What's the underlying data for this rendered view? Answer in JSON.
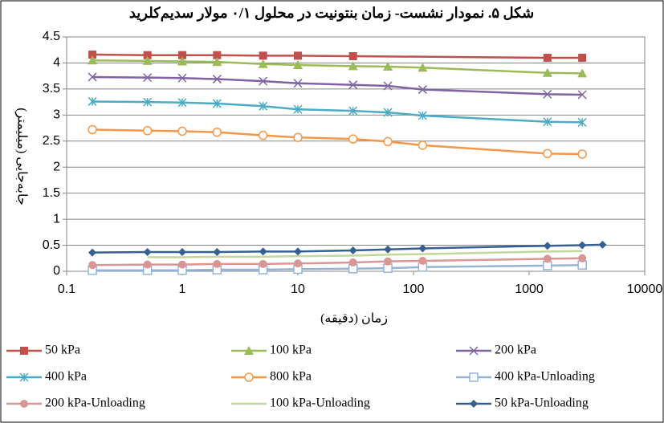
{
  "chart_data": {
    "type": "line",
    "title": "شکل ۵. نمودار نشست- زمان بنتونیت در محلول ۰/۱ مولار سدیم‌کلرید",
    "x_label": "زمان (دقیقه)",
    "y_label": "جابه‌جایی (میلیمتر)",
    "xlim": [
      0.1,
      10000
    ],
    "xticks": [
      0.1,
      1,
      10,
      100,
      1000,
      10000
    ],
    "x_log": true,
    "ylim": [
      0,
      4.5
    ],
    "yticks": [
      0,
      0.5,
      1,
      1.5,
      2,
      2.5,
      3,
      3.5,
      4,
      4.5
    ],
    "grid": true,
    "legend": "bottom",
    "series": [
      {
        "name": "50 kPa",
        "color": "#c0504d",
        "marker": "square",
        "x": [
          0.167,
          0.5,
          1,
          2,
          5,
          10,
          30,
          1440,
          2880
        ],
        "values": [
          4.16,
          4.15,
          4.15,
          4.15,
          4.14,
          4.14,
          4.13,
          4.1,
          4.1
        ]
      },
      {
        "name": "100 kPa",
        "color": "#9bbb59",
        "marker": "triangle",
        "x": [
          0.167,
          0.5,
          1,
          2,
          5,
          10,
          30,
          60,
          120,
          1440,
          2880
        ],
        "values": [
          4.05,
          4.04,
          4.03,
          4.02,
          3.98,
          3.96,
          3.94,
          3.93,
          3.91,
          3.81,
          3.8
        ]
      },
      {
        "name": "200 kPa",
        "color": "#8064a2",
        "marker": "x",
        "x": [
          0.167,
          0.5,
          1,
          2,
          5,
          10,
          30,
          60,
          120,
          1440,
          2880
        ],
        "values": [
          3.73,
          3.72,
          3.71,
          3.69,
          3.65,
          3.61,
          3.58,
          3.56,
          3.49,
          3.4,
          3.39
        ]
      },
      {
        "name": "400 kPa",
        "color": "#4bacc6",
        "marker": "star",
        "x": [
          0.167,
          0.5,
          1,
          2,
          5,
          10,
          30,
          60,
          120,
          1440,
          2880
        ],
        "values": [
          3.26,
          3.25,
          3.24,
          3.22,
          3.17,
          3.11,
          3.08,
          3.05,
          2.99,
          2.87,
          2.86
        ]
      },
      {
        "name": "800 kPa",
        "color": "#f79646",
        "marker": "open-circle",
        "x": [
          0.167,
          0.5,
          1,
          2,
          5,
          10,
          30,
          60,
          120,
          1440,
          2880
        ],
        "values": [
          2.72,
          2.7,
          2.69,
          2.67,
          2.61,
          2.57,
          2.54,
          2.49,
          2.42,
          2.26,
          2.25
        ]
      },
      {
        "name": "400 kPa-Unloading",
        "color": "#95b3d7",
        "marker": "open-square",
        "x": [
          0.167,
          0.5,
          1,
          2,
          5,
          10,
          30,
          60,
          120,
          1440,
          2880
        ],
        "values": [
          0.02,
          0.02,
          0.02,
          0.03,
          0.03,
          0.04,
          0.05,
          0.06,
          0.08,
          0.11,
          0.12
        ]
      },
      {
        "name": "200 kPa-Unloading",
        "color": "#d99694",
        "marker": "circle",
        "x": [
          0.167,
          0.5,
          1,
          2,
          5,
          10,
          30,
          60,
          120,
          1440,
          2880
        ],
        "values": [
          0.12,
          0.13,
          0.13,
          0.14,
          0.14,
          0.15,
          0.17,
          0.19,
          0.2,
          0.24,
          0.25
        ]
      },
      {
        "name": "100 kPa-Unloading",
        "color": "#c3d69b",
        "marker": "none",
        "x": [
          0.5,
          1,
          2,
          5,
          10,
          30,
          60,
          120,
          1440,
          2880
        ],
        "values": [
          0.27,
          0.27,
          0.28,
          0.28,
          0.29,
          0.3,
          0.32,
          0.33,
          0.38,
          0.39
        ]
      },
      {
        "name": "50 kPa-Unloading",
        "color": "#376092",
        "marker": "diamond",
        "x": [
          0.167,
          0.5,
          1,
          2,
          5,
          10,
          30,
          60,
          120,
          1440,
          2880,
          4320
        ],
        "values": [
          0.36,
          0.37,
          0.37,
          0.37,
          0.38,
          0.38,
          0.4,
          0.42,
          0.44,
          0.49,
          0.5,
          0.51
        ]
      }
    ]
  }
}
